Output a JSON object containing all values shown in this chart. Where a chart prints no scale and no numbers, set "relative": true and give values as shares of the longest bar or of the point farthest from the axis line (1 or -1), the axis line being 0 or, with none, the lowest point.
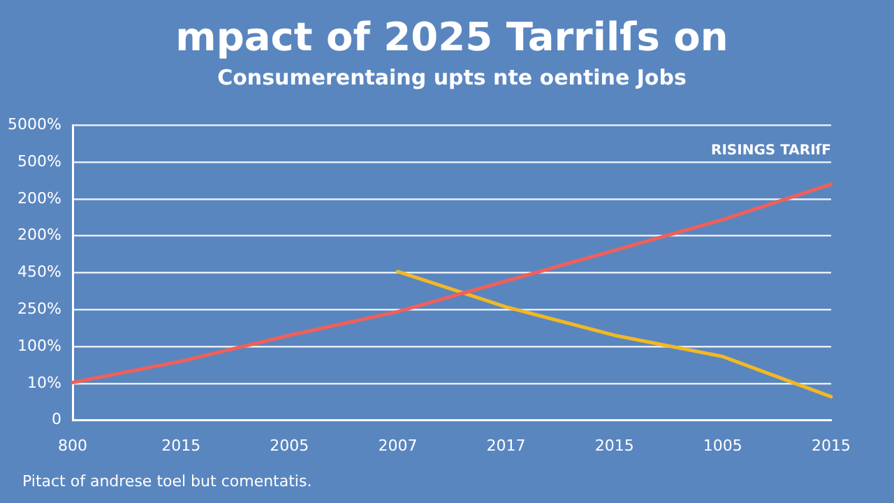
{
  "chart_data": {
    "type": "line",
    "title": "mpact of 2025 Tarrilſs on",
    "subtitle": "Consumerentaing upts nte oentine Jobs",
    "categories": [
      "800",
      "2015",
      "2005",
      "2007",
      "2017",
      "2015",
      "1005",
      "2015"
    ],
    "series": [
      {
        "name": "RISINGS TARIſF",
        "color": "#f0605a",
        "values": [
          0.16,
          0.25,
          0.36,
          0.46,
          0.59,
          0.72,
          0.85,
          1
        ]
      },
      {
        "color": "#f2b824",
        "values": [
          null,
          null,
          null,
          0.63,
          0.48,
          0.36,
          0.27,
          0.1
        ]
      }
    ],
    "relative": true,
    "grid": "y",
    "legend": false,
    "marker": "none",
    "line_style": "solid",
    "annotations": [
      "Pitact of andrese toel but comentatis.",
      "5000%",
      "500%",
      "200%",
      "200%",
      "450%",
      "250%",
      "100%",
      "10%",
      "0"
    ]
  }
}
